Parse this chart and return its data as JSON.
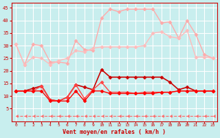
{
  "xlabel": "Vent moyen/en rafales ( km/h )",
  "xlim": [
    -0.5,
    23.5
  ],
  "ylim": [
    0,
    47
  ],
  "yticks": [
    5,
    10,
    15,
    20,
    25,
    30,
    35,
    40,
    45
  ],
  "xticks": [
    0,
    1,
    2,
    3,
    4,
    5,
    6,
    7,
    8,
    9,
    10,
    11,
    12,
    13,
    14,
    15,
    16,
    17,
    18,
    19,
    20,
    21,
    22,
    23
  ],
  "bg_color": "#c8eeee",
  "grid_color": "#ffffff",
  "series": [
    {
      "x": [
        0,
        1,
        2,
        3,
        4,
        5,
        6,
        7,
        8,
        9,
        10,
        11,
        12,
        13,
        14,
        15,
        16,
        17,
        18,
        19,
        20,
        21,
        22,
        23
      ],
      "y": [
        30.5,
        22.5,
        30.5,
        30.0,
        23.5,
        23.5,
        23.0,
        32.0,
        28.5,
        28.0,
        41.0,
        44.5,
        43.5,
        44.5,
        44.5,
        44.5,
        44.5,
        39.0,
        39.5,
        33.0,
        40.0,
        34.5,
        26.5,
        25.0
      ],
      "color": "#ffaaaa",
      "marker": "D",
      "markersize": 2.5,
      "linewidth": 1.0,
      "linestyle": "-"
    },
    {
      "x": [
        0,
        1,
        2,
        3,
        4,
        5,
        6,
        7,
        8,
        9,
        10,
        11,
        12,
        13,
        14,
        15,
        16,
        17,
        18,
        19,
        20,
        21,
        22,
        23
      ],
      "y": [
        30.5,
        22.5,
        25.5,
        25.0,
        22.5,
        24.0,
        25.0,
        28.0,
        27.5,
        29.0,
        29.5,
        29.5,
        29.5,
        29.5,
        29.5,
        30.0,
        35.0,
        35.5,
        33.5,
        33.0,
        36.0,
        25.5,
        25.5,
        25.0
      ],
      "color": "#ffbbbb",
      "marker": "D",
      "markersize": 2.5,
      "linewidth": 1.0,
      "linestyle": "-"
    },
    {
      "x": [
        0,
        1,
        2,
        3,
        4,
        5,
        6,
        7,
        8,
        9,
        10,
        11,
        12,
        13,
        14,
        15,
        16,
        17,
        18,
        19,
        20,
        21,
        22,
        23
      ],
      "y": [
        12.0,
        12.0,
        13.0,
        14.0,
        8.5,
        8.0,
        9.5,
        14.5,
        13.5,
        12.5,
        20.5,
        17.5,
        17.5,
        17.5,
        17.5,
        17.5,
        17.5,
        17.5,
        15.5,
        12.5,
        13.5,
        12.0,
        12.0,
        12.0
      ],
      "color": "#cc0000",
      "marker": "D",
      "markersize": 2.5,
      "linewidth": 1.2,
      "linestyle": "-"
    },
    {
      "x": [
        0,
        1,
        2,
        3,
        4,
        5,
        6,
        7,
        8,
        9,
        10,
        11,
        12,
        13,
        14,
        15,
        16,
        17,
        18,
        19,
        20,
        21,
        22,
        23
      ],
      "y": [
        12.0,
        12.0,
        12.0,
        14.0,
        8.5,
        8.0,
        9.5,
        14.5,
        9.0,
        12.5,
        15.5,
        11.5,
        11.5,
        11.5,
        11.0,
        11.5,
        11.5,
        11.5,
        11.5,
        12.0,
        12.0,
        12.0,
        12.0,
        12.0
      ],
      "color": "#ff4444",
      "marker": "D",
      "markersize": 2.5,
      "linewidth": 1.0,
      "linestyle": "-"
    },
    {
      "x": [
        0,
        1,
        2,
        3,
        4,
        5,
        6,
        7,
        8,
        9,
        10,
        11,
        12,
        13,
        14,
        15,
        16,
        17,
        18,
        19,
        20,
        21,
        22,
        23
      ],
      "y": [
        12.0,
        12.0,
        12.0,
        12.0,
        8.0,
        8.0,
        8.0,
        12.0,
        8.0,
        12.0,
        12.0,
        11.0,
        11.0,
        11.0,
        11.0,
        11.0,
        11.0,
        11.5,
        11.5,
        12.0,
        12.0,
        12.0,
        12.0,
        12.0
      ],
      "color": "#ff0000",
      "marker": "D",
      "markersize": 2.5,
      "linewidth": 1.0,
      "linestyle": "-"
    },
    {
      "x": [
        0,
        1,
        2,
        3,
        4,
        5,
        6,
        7,
        8,
        9,
        10,
        11,
        12,
        13,
        14,
        15,
        16,
        17,
        18,
        19,
        20,
        21,
        22,
        23
      ],
      "y": [
        2.0,
        2.0,
        2.0,
        2.0,
        2.0,
        2.0,
        2.0,
        2.0,
        2.0,
        2.0,
        2.0,
        2.0,
        2.0,
        2.0,
        2.0,
        2.0,
        2.0,
        2.0,
        2.0,
        2.0,
        2.0,
        2.0,
        2.0,
        2.0
      ],
      "color": "#ff6666",
      "marker": 4,
      "markersize": 3,
      "linewidth": 0.8,
      "linestyle": "--"
    }
  ]
}
